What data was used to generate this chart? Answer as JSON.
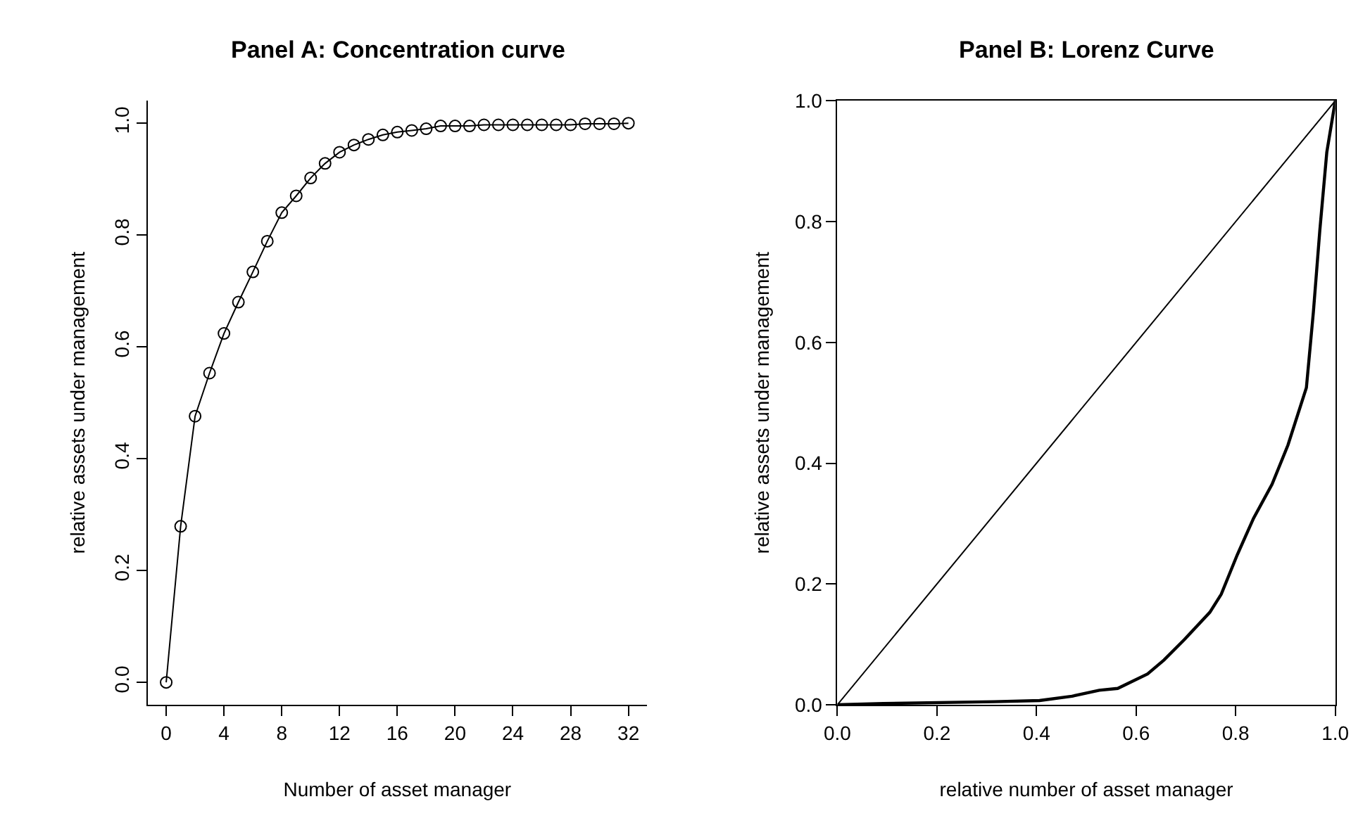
{
  "chart_data": [
    {
      "type": "line",
      "title": "Panel A: Concentration curve",
      "xlabel": "Number of asset manager",
      "ylabel": "relative assets under management",
      "marker": "circle",
      "line_style": "solid",
      "x": [
        0,
        1,
        2,
        3,
        4,
        5,
        6,
        7,
        8,
        9,
        10,
        11,
        12,
        13,
        14,
        15,
        16,
        17,
        18,
        19,
        20,
        21,
        22,
        23,
        24,
        25,
        26,
        27,
        28,
        29,
        30,
        31,
        32
      ],
      "series": [
        {
          "color": "#000000",
          "values": [
            0,
            0.279,
            0.476,
            0.553,
            0.624,
            0.68,
            0.734,
            0.789,
            0.84,
            0.87,
            0.902,
            0.928,
            0.948,
            0.961,
            0.971,
            0.979,
            0.984,
            0.987,
            0.99,
            0.995,
            0.995,
            0.995,
            0.997,
            0.997,
            0.997,
            0.997,
            0.997,
            0.997,
            0.997,
            0.999,
            0.999,
            0.999,
            1.0
          ]
        }
      ],
      "xlim": [
        -1.28,
        33.28
      ],
      "ylim": [
        -0.04,
        1.04
      ],
      "xticks": [
        0,
        4,
        8,
        12,
        16,
        20,
        24,
        28,
        32
      ],
      "yticks": [
        {
          "value": 0,
          "label": "0.0"
        },
        {
          "value": 0.2,
          "label": "0.2"
        },
        {
          "value": 0.4,
          "label": "0.4"
        },
        {
          "value": 0.6,
          "label": "0.6"
        },
        {
          "value": 0.8,
          "label": "0.8"
        },
        {
          "value": 1,
          "label": "1.0"
        }
      ]
    },
    {
      "type": "line",
      "title": "Panel B: Lorenz Curve",
      "xlabel": "relative number of asset manager",
      "ylabel": "relative assets under management",
      "marker": "none",
      "line_style": "solid",
      "series": [
        {
          "color": "#000000",
          "x": [
            0,
            1
          ],
          "values": [
            0,
            1
          ]
        },
        {
          "color": "#000000",
          "x": [
            0,
            0.092,
            0.314,
            0.406,
            0.471,
            0.526,
            0.563,
            0.623,
            0.656,
            0.697,
            0.748,
            0.771,
            0.803,
            0.836,
            0.873,
            0.905,
            0.942,
            0.956,
            0.969,
            0.983,
            1
          ],
          "values": [
            0,
            0.002,
            0.005,
            0.007,
            0.014,
            0.024,
            0.027,
            0.051,
            0.074,
            0.108,
            0.153,
            0.183,
            0.248,
            0.309,
            0.365,
            0.43,
            0.525,
            0.65,
            0.786,
            0.915,
            1
          ]
        }
      ],
      "xlim": [
        0,
        1
      ],
      "ylim": [
        0,
        1
      ],
      "xticks": [
        {
          "value": 0,
          "label": "0.0"
        },
        {
          "value": 0.2,
          "label": "0.2"
        },
        {
          "value": 0.4,
          "label": "0.4"
        },
        {
          "value": 0.6,
          "label": "0.6"
        },
        {
          "value": 0.8,
          "label": "0.8"
        },
        {
          "value": 1,
          "label": "1.0"
        }
      ],
      "yticks": [
        {
          "value": 0,
          "label": "0.0"
        },
        {
          "value": 0.2,
          "label": "0.2"
        },
        {
          "value": 0.4,
          "label": "0.4"
        },
        {
          "value": 0.6,
          "label": "0.6"
        },
        {
          "value": 0.8,
          "label": "0.8"
        },
        {
          "value": 1,
          "label": "1.0"
        }
      ]
    }
  ]
}
